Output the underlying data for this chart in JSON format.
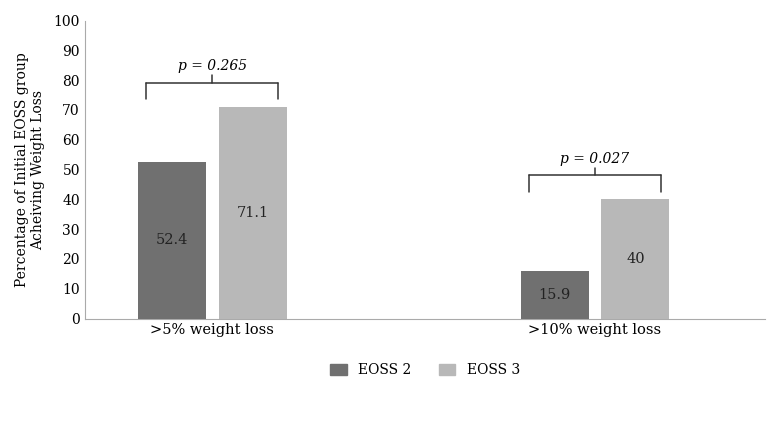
{
  "groups": [
    ">5% weight loss",
    ">10% weight loss"
  ],
  "eoss2_values": [
    52.4,
    15.9
  ],
  "eoss3_values": [
    71.1,
    40.0
  ],
  "eoss2_color": "#707070",
  "eoss3_color": "#b8b8b8",
  "ylabel": "Percentage of Initial EOSS group\nAcheiving Weight Loss",
  "ylim": [
    0,
    100
  ],
  "yticks": [
    0,
    10,
    20,
    30,
    40,
    50,
    60,
    70,
    80,
    90,
    100
  ],
  "p_values": [
    "p = 0.265",
    "p = 0.027"
  ],
  "legend_labels": [
    "EOSS 2",
    "EOSS 3"
  ],
  "bar_width": 0.32,
  "group_centers": [
    1.0,
    2.8
  ],
  "xlim": [
    0.4,
    3.6
  ]
}
